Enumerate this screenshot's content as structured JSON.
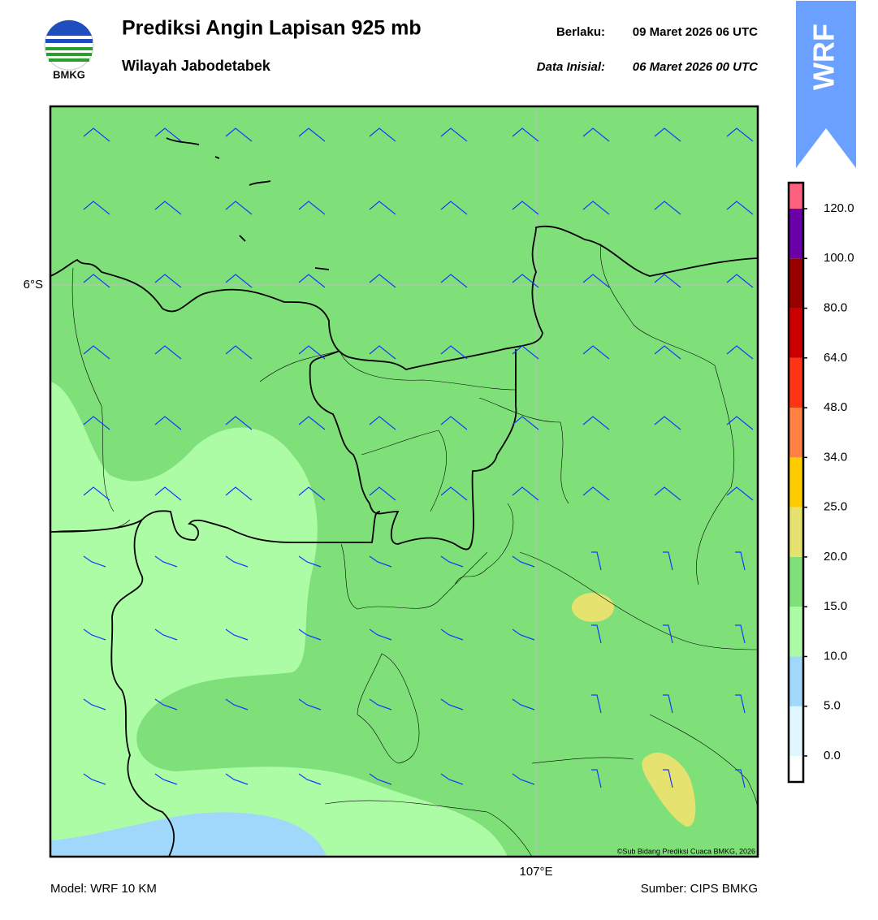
{
  "header": {
    "logo_text": "BMKG",
    "title": "Prediksi Angin Lapisan 925 mb",
    "subtitle": "Wilayah Jabodetabek",
    "valid_label": "Berlaku:",
    "valid_time": "09 Maret 2026 06 UTC",
    "init_label": "Data Inisial:",
    "init_time": "06 Maret 2026 00 UTC",
    "banner": "WRF"
  },
  "map": {
    "lat_label": "6°S",
    "lon_label": "107°E",
    "credit": "©Sub Bidang Prediksi Cuaca BMKG, 2026"
  },
  "colorbar": {
    "colors": [
      "#ffffff",
      "#e0f7ff",
      "#a0d8fb",
      "#acfca6",
      "#7fe07a",
      "#e6e270",
      "#ffcc00",
      "#ff8040",
      "#ff3414",
      "#cc0000",
      "#990000",
      "#6a00a8",
      "#ff6080"
    ],
    "ticks": [
      {
        "value": 0,
        "label": "0.0"
      },
      {
        "value": 5,
        "label": "5.0"
      },
      {
        "value": 10,
        "label": "10.0"
      },
      {
        "value": 15,
        "label": "15.0"
      },
      {
        "value": 20,
        "label": "20.0"
      },
      {
        "value": 25,
        "label": "25.0"
      },
      {
        "value": 34,
        "label": "34.0"
      },
      {
        "value": 48,
        "label": "48.0"
      },
      {
        "value": 64,
        "label": "64.0"
      },
      {
        "value": 80,
        "label": "80.0"
      },
      {
        "value": 100,
        "label": "100.0"
      },
      {
        "value": 120,
        "label": "120.0"
      }
    ]
  },
  "footer": {
    "model": "Model: WRF 10 KM",
    "source": "Sumber: CIPS BMKG"
  }
}
